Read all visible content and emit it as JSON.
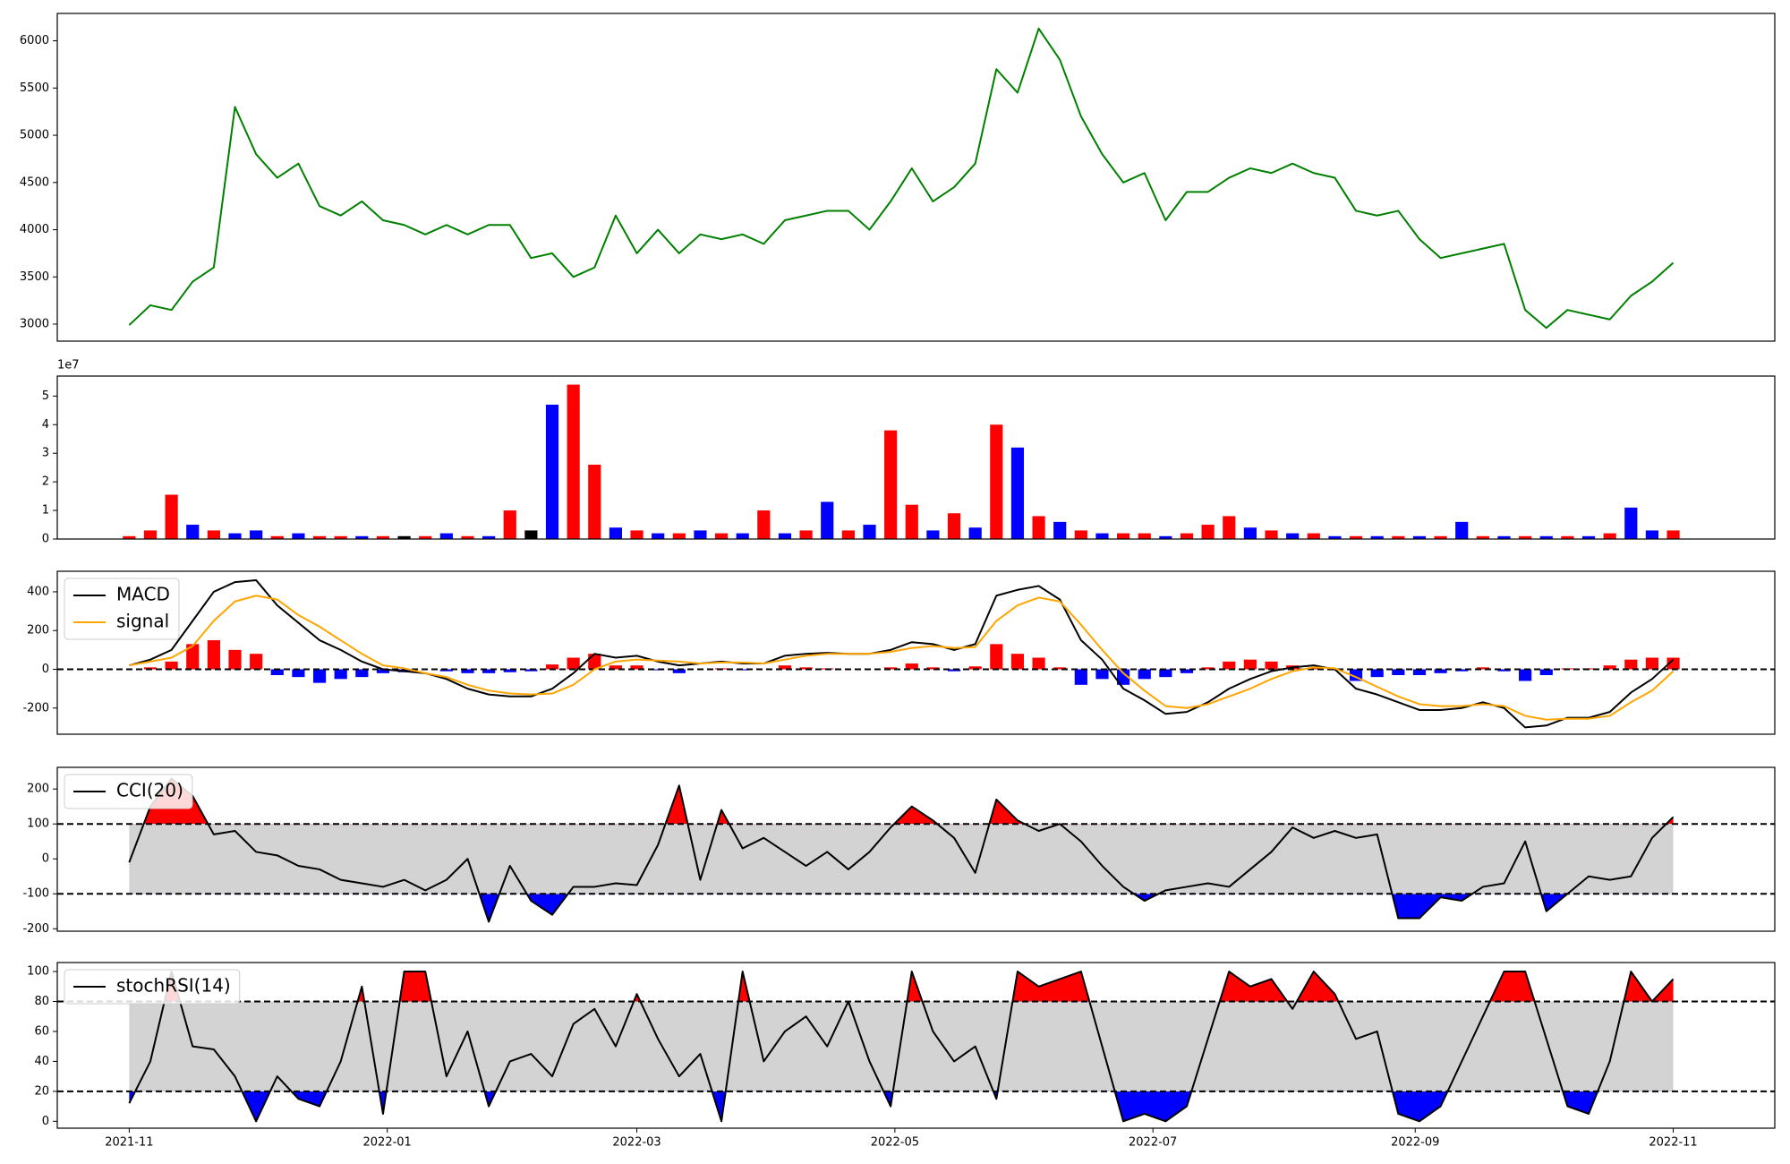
{
  "chart_data": [
    {
      "type": "line",
      "x": [
        0,
        5,
        10,
        15,
        20,
        25,
        30,
        35,
        40,
        45,
        50,
        55,
        60,
        65,
        70,
        75,
        80,
        85,
        90,
        95,
        100,
        105,
        110,
        115,
        120,
        125,
        130,
        135,
        140,
        145,
        150,
        155,
        160,
        165,
        170,
        175,
        180,
        185,
        190,
        195,
        200,
        205,
        210,
        215,
        220,
        225,
        230,
        235,
        240,
        245,
        250,
        255,
        260,
        265,
        270,
        275,
        280,
        285,
        290,
        295,
        300,
        305,
        310,
        315,
        320,
        325,
        330,
        335,
        340,
        345,
        350,
        355,
        360,
        365
      ],
      "values": [
        2990,
        3200,
        3150,
        3450,
        3600,
        5300,
        4800,
        4550,
        4700,
        4250,
        4150,
        4300,
        4100,
        4050,
        3950,
        4050,
        3950,
        4050,
        4050,
        3700,
        3750,
        3500,
        3600,
        4150,
        3750,
        4000,
        3750,
        3950,
        3900,
        3950,
        3850,
        4100,
        4150,
        4200,
        4200,
        4000,
        4300,
        4650,
        4300,
        4450,
        4700,
        5700,
        5450,
        6130,
        5800,
        5200,
        4800,
        4500,
        4600,
        4100,
        4400,
        4400,
        4550,
        4650,
        4600,
        4700,
        4600,
        4550,
        4200,
        4150,
        4200,
        3900,
        3700,
        3750,
        3800,
        3850,
        3150,
        2960,
        3150,
        3100,
        3050,
        3300,
        3450,
        3650
      ],
      "color": "green",
      "xlim": [
        -17,
        389
      ],
      "ylim": [
        2820,
        6290
      ],
      "yticks": [
        3000,
        3500,
        4000,
        4500,
        5000,
        5500,
        6000
      ]
    },
    {
      "type": "bar",
      "x": [
        0,
        5,
        10,
        15,
        20,
        25,
        30,
        35,
        40,
        45,
        50,
        55,
        60,
        65,
        70,
        75,
        80,
        85,
        90,
        95,
        100,
        105,
        110,
        115,
        120,
        125,
        130,
        135,
        140,
        145,
        150,
        155,
        160,
        165,
        170,
        175,
        180,
        185,
        190,
        195,
        200,
        205,
        210,
        215,
        220,
        225,
        230,
        235,
        240,
        245,
        250,
        255,
        260,
        265,
        270,
        275,
        280,
        285,
        290,
        295,
        300,
        305,
        310,
        315,
        320,
        325,
        330,
        335,
        340,
        345,
        350,
        355,
        360,
        365
      ],
      "values": [
        0.1,
        0.3,
        1.55,
        0.5,
        0.3,
        0.2,
        0.3,
        0.1,
        0.2,
        0.1,
        0.1,
        0.1,
        0.1,
        0.1,
        0.1,
        0.2,
        0.1,
        0.1,
        1.0,
        0.3,
        4.7,
        5.4,
        2.6,
        0.4,
        0.3,
        0.2,
        0.2,
        0.3,
        0.2,
        0.2,
        1.0,
        0.2,
        0.3,
        1.3,
        0.3,
        0.5,
        3.8,
        1.2,
        0.3,
        0.9,
        0.4,
        4.0,
        3.2,
        0.8,
        0.6,
        0.3,
        0.2,
        0.2,
        0.2,
        0.1,
        0.2,
        0.5,
        0.8,
        0.4,
        0.3,
        0.2,
        0.2,
        0.1,
        0.1,
        0.1,
        0.1,
        0.1,
        0.1,
        0.6,
        0.1,
        0.1,
        0.1,
        0.1,
        0.1,
        0.1,
        0.2,
        1.1,
        0.3,
        0.3
      ],
      "colors": [
        "red",
        "red",
        "red",
        "blue",
        "red",
        "blue",
        "blue",
        "red",
        "blue",
        "red",
        "red",
        "blue",
        "red",
        "black",
        "red",
        "blue",
        "red",
        "blue",
        "red",
        "black",
        "blue",
        "red",
        "red",
        "blue",
        "red",
        "blue",
        "red",
        "blue",
        "red",
        "blue",
        "red",
        "blue",
        "red",
        "blue",
        "red",
        "blue",
        "red",
        "red",
        "blue",
        "red",
        "blue",
        "red",
        "blue",
        "red",
        "blue",
        "red",
        "blue",
        "red",
        "red",
        "blue",
        "red",
        "red",
        "red",
        "blue",
        "red",
        "blue",
        "red",
        "blue",
        "red",
        "blue",
        "red",
        "blue",
        "red",
        "blue",
        "red",
        "blue",
        "red",
        "blue",
        "red",
        "blue",
        "red",
        "blue",
        "blue",
        "red"
      ],
      "xlim": [
        -17,
        389
      ],
      "ylim": [
        0,
        5.7
      ],
      "yticks": [
        0,
        1,
        2,
        3,
        4,
        5
      ],
      "y_offset_label": "1e7"
    },
    {
      "type": "line",
      "x": [
        0,
        5,
        10,
        15,
        20,
        25,
        30,
        35,
        40,
        45,
        50,
        55,
        60,
        65,
        70,
        75,
        80,
        85,
        90,
        95,
        100,
        105,
        110,
        115,
        120,
        125,
        130,
        135,
        140,
        145,
        150,
        155,
        160,
        165,
        170,
        175,
        180,
        185,
        190,
        195,
        200,
        205,
        210,
        215,
        220,
        225,
        230,
        235,
        240,
        245,
        250,
        255,
        260,
        265,
        270,
        275,
        280,
        285,
        290,
        295,
        300,
        305,
        310,
        315,
        320,
        325,
        330,
        335,
        340,
        345,
        350,
        355,
        360,
        365
      ],
      "series": [
        {
          "name": "MACD",
          "color": "black",
          "values": [
            20,
            50,
            100,
            250,
            400,
            450,
            460,
            330,
            240,
            150,
            100,
            40,
            0,
            -10,
            -20,
            -50,
            -100,
            -130,
            -140,
            -140,
            -100,
            -20,
            80,
            60,
            70,
            40,
            20,
            30,
            40,
            30,
            30,
            70,
            80,
            85,
            80,
            80,
            100,
            140,
            130,
            100,
            130,
            380,
            410,
            430,
            360,
            150,
            50,
            -100,
            -160,
            -230,
            -220,
            -170,
            -100,
            -50,
            -10,
            10,
            20,
            0,
            -100,
            -130,
            -170,
            -210,
            -210,
            -200,
            -170,
            -200,
            -300,
            -290,
            -250,
            -250,
            -220,
            -120,
            -50,
            50
          ]
        },
        {
          "name": "signal",
          "color": "orange",
          "values": [
            20,
            40,
            60,
            120,
            250,
            350,
            380,
            360,
            280,
            220,
            150,
            80,
            20,
            5,
            -20,
            -40,
            -80,
            -110,
            -125,
            -130,
            -125,
            -80,
            0,
            40,
            50,
            45,
            40,
            30,
            35,
            35,
            30,
            50,
            70,
            80,
            80,
            80,
            90,
            110,
            120,
            110,
            115,
            250,
            330,
            370,
            350,
            230,
            100,
            -20,
            -110,
            -190,
            -200,
            -180,
            -140,
            -100,
            -50,
            -10,
            10,
            5,
            -40,
            -90,
            -140,
            -180,
            -190,
            -190,
            -180,
            -190,
            -240,
            -260,
            -255,
            -255,
            -240,
            -170,
            -110,
            -10
          ]
        },
        {
          "type": "bar",
          "pos_color": "red",
          "neg_color": "blue",
          "values": [
            0,
            10,
            40,
            130,
            150,
            100,
            80,
            -30,
            -40,
            -70,
            -50,
            -40,
            -20,
            -15,
            0,
            -10,
            -20,
            -20,
            -15,
            -10,
            25,
            60,
            80,
            20,
            20,
            -5,
            -20,
            0,
            5,
            -5,
            0,
            20,
            10,
            5,
            0,
            0,
            10,
            30,
            10,
            -10,
            15,
            130,
            80,
            60,
            10,
            -80,
            -50,
            -80,
            -50,
            -40,
            -20,
            10,
            40,
            50,
            40,
            20,
            10,
            -5,
            -60,
            -40,
            -30,
            -30,
            -20,
            -10,
            10,
            -10,
            -60,
            -30,
            5,
            5,
            20,
            50,
            60,
            60
          ]
        }
      ],
      "hlines": [
        0
      ],
      "legend": "upper left",
      "xlim": [
        -17,
        389
      ],
      "ylim": [
        -335,
        506
      ],
      "yticks": [
        -200,
        0,
        200,
        400
      ]
    },
    {
      "type": "line",
      "x": [
        0,
        5,
        10,
        15,
        20,
        25,
        30,
        35,
        40,
        45,
        50,
        55,
        60,
        65,
        70,
        75,
        80,
        85,
        90,
        95,
        100,
        105,
        110,
        115,
        120,
        125,
        130,
        135,
        140,
        145,
        150,
        155,
        160,
        165,
        170,
        175,
        180,
        185,
        190,
        195,
        200,
        205,
        210,
        215,
        220,
        225,
        230,
        235,
        240,
        245,
        250,
        255,
        260,
        265,
        270,
        275,
        280,
        285,
        290,
        295,
        300,
        305,
        310,
        315,
        320,
        325,
        330,
        335,
        340,
        345,
        350,
        355,
        360,
        365
      ],
      "series": [
        {
          "name": "CCI(20)",
          "color": "black",
          "values": [
            -10,
            150,
            230,
            180,
            70,
            80,
            20,
            10,
            -20,
            -30,
            -60,
            -70,
            -80,
            -60,
            -90,
            -60,
            0,
            -180,
            -20,
            -120,
            -160,
            -80,
            -80,
            -70,
            -75,
            40,
            210,
            -60,
            140,
            30,
            60,
            20,
            -20,
            20,
            -30,
            20,
            90,
            150,
            110,
            60,
            -40,
            170,
            110,
            80,
            100,
            50,
            -20,
            -80,
            -120,
            -90,
            -80,
            -70,
            -80,
            -30,
            20,
            90,
            60,
            80,
            60,
            70,
            -170,
            -170,
            -110,
            -120,
            -80,
            -70,
            50,
            -150,
            -100,
            -50,
            -60,
            -50,
            60,
            120
          ]
        }
      ],
      "bands": [
        -100,
        100
      ],
      "band_color": "lightgray",
      "above_color": "red",
      "below_color": "blue",
      "legend": "upper left",
      "xlim": [
        -17,
        389
      ],
      "ylim": [
        -207,
        262
      ],
      "yticks": [
        -200,
        -100,
        0,
        100,
        200
      ]
    },
    {
      "type": "line",
      "x": [
        0,
        5,
        10,
        15,
        20,
        25,
        30,
        35,
        40,
        45,
        50,
        55,
        60,
        65,
        70,
        75,
        80,
        85,
        90,
        95,
        100,
        105,
        110,
        115,
        120,
        125,
        130,
        135,
        140,
        145,
        150,
        155,
        160,
        165,
        170,
        175,
        180,
        185,
        190,
        195,
        200,
        205,
        210,
        215,
        220,
        225,
        230,
        235,
        240,
        245,
        250,
        255,
        260,
        265,
        270,
        275,
        280,
        285,
        290,
        295,
        300,
        305,
        310,
        315,
        320,
        325,
        330,
        335,
        340,
        345,
        350,
        355,
        360,
        365
      ],
      "series": [
        {
          "name": "stochRSI(14)",
          "color": "black",
          "values": [
            12,
            40,
            100,
            50,
            48,
            30,
            0,
            30,
            15,
            10,
            40,
            90,
            5,
            100,
            100,
            30,
            60,
            10,
            40,
            45,
            30,
            65,
            75,
            50,
            85,
            55,
            30,
            45,
            0,
            100,
            40,
            60,
            70,
            50,
            80,
            40,
            10,
            100,
            60,
            40,
            50,
            15,
            100,
            90,
            95,
            100,
            50,
            0,
            5,
            0,
            10,
            55,
            100,
            90,
            95,
            75,
            100,
            85,
            55,
            60,
            5,
            0,
            10,
            40,
            70,
            100,
            100,
            55,
            10,
            5,
            40,
            100,
            80,
            95
          ]
        }
      ],
      "bands": [
        20,
        80
      ],
      "band_color": "lightgray",
      "above_color": "red",
      "below_color": "blue",
      "legend": "upper left",
      "xlim": [
        -17,
        389
      ],
      "ylim": [
        -4.6,
        106
      ],
      "yticks": [
        0,
        20,
        40,
        60,
        80,
        100
      ],
      "xticks": [
        {
          "value": 0,
          "label": "2021-11"
        },
        {
          "value": 61,
          "label": "2022-01"
        },
        {
          "value": 120,
          "label": "2022-03"
        },
        {
          "value": 181,
          "label": "2022-05"
        },
        {
          "value": 242,
          "label": "2022-07"
        },
        {
          "value": 304,
          "label": "2022-09"
        },
        {
          "value": 365,
          "label": "2022-11"
        }
      ]
    }
  ]
}
